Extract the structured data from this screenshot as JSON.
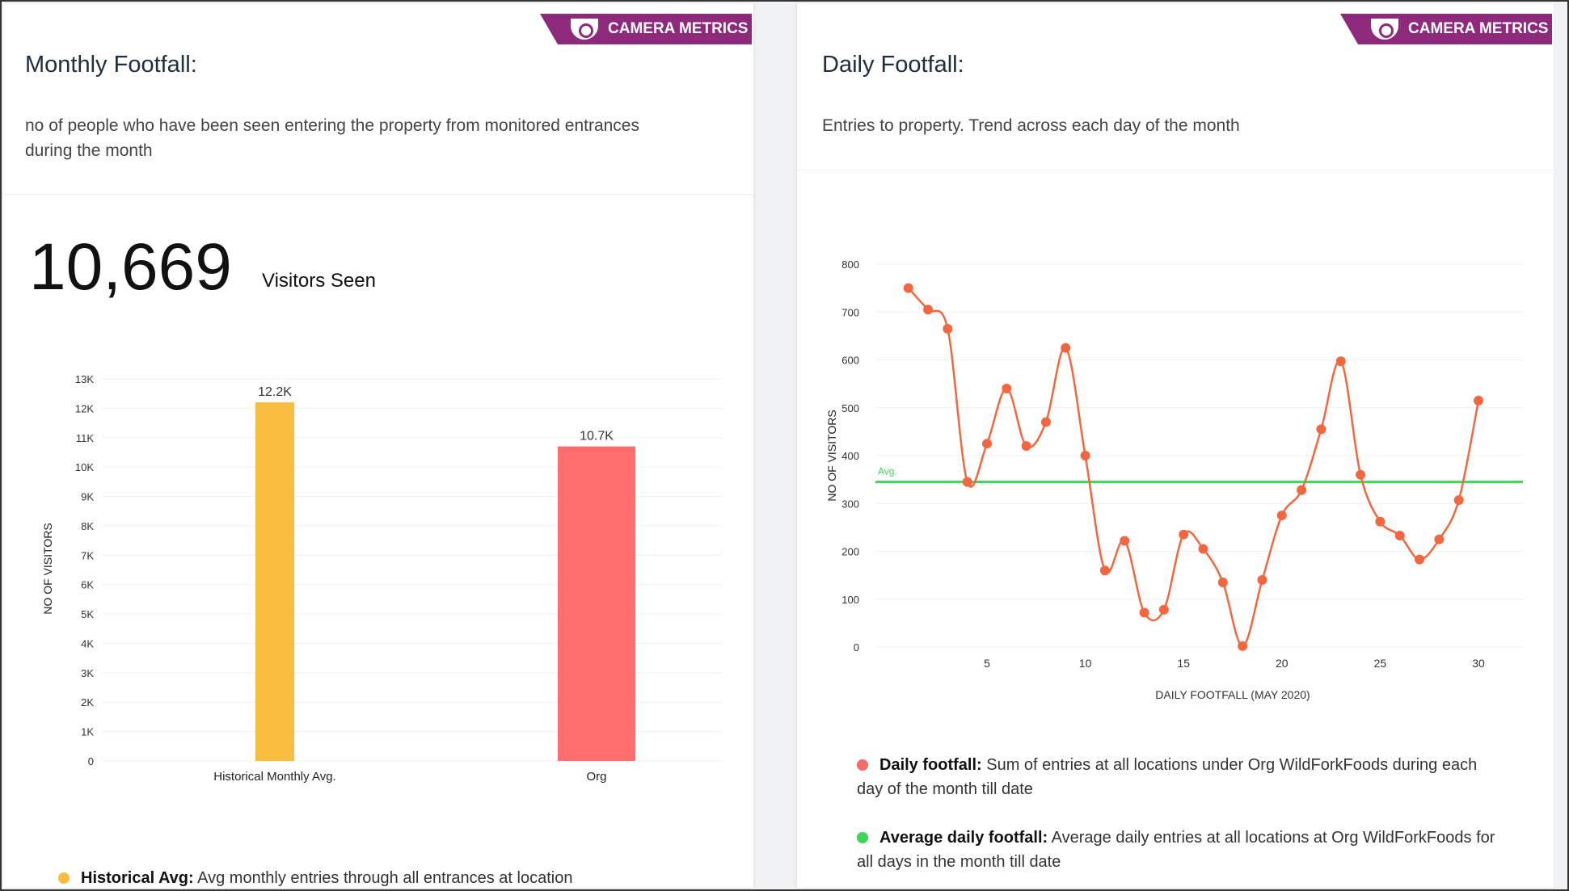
{
  "left": {
    "badge": "CAMERA METRICS",
    "title": "Monthly Footfall:",
    "description": "no of people who have been seen entering the property from monitored entrances during the month",
    "big_number": "10,669",
    "big_label": "Visitors Seen",
    "legend": [
      {
        "bold": "Historical Avg:",
        "text": "Avg monthly entries through all entrances at location",
        "color": "#fbbd3f"
      }
    ]
  },
  "right": {
    "badge": "CAMERA METRICS",
    "title": "Daily Footfall:",
    "description": "Entries to property. Trend across each day of the month",
    "legend": [
      {
        "bold": "Daily footfall:",
        "text": "Sum of entries at all locations under Org WildForkFoods during each day of the month till date",
        "color": "#f46a6a"
      },
      {
        "bold": "Average daily footfall:",
        "text": "Average daily entries at all locations at Org WildForkFoods for all days in the month till date",
        "color": "#3fd45a"
      }
    ]
  },
  "chart_data": [
    {
      "type": "bar",
      "categories": [
        "Historical Monthly Avg.",
        "Org"
      ],
      "values": [
        12200,
        10700
      ],
      "data_labels": [
        "12.2K",
        "10.7K"
      ],
      "colors": [
        "#fbbd3f",
        "#fe6e6e"
      ],
      "ylabel": "NO OF VISITORS",
      "ylim": [
        0,
        13000
      ],
      "yticks": [
        "0",
        "1K",
        "2K",
        "3K",
        "4K",
        "5K",
        "6K",
        "7K",
        "8K",
        "9K",
        "10K",
        "11K",
        "12K",
        "13K"
      ]
    },
    {
      "type": "line",
      "title": "",
      "xlabel": "DAILY FOOTFALL (MAY 2020)",
      "ylabel": "NO OF VISITORS",
      "ylim": [
        0,
        800
      ],
      "yticks": [
        "0",
        "100",
        "200",
        "300",
        "400",
        "500",
        "600",
        "700",
        "800"
      ],
      "xticks": [
        "5",
        "10",
        "15",
        "20",
        "25",
        "30"
      ],
      "x": [
        1,
        2,
        3,
        4,
        5,
        6,
        7,
        8,
        9,
        10,
        11,
        12,
        13,
        14,
        15,
        16,
        17,
        18,
        19,
        20,
        21,
        22,
        23,
        24,
        25,
        26,
        27,
        28,
        29,
        30
      ],
      "values": [
        750,
        705,
        665,
        345,
        425,
        540,
        420,
        470,
        625,
        400,
        160,
        222,
        72,
        78,
        235,
        205,
        135,
        2,
        140,
        275,
        328,
        455,
        597,
        360,
        262,
        233,
        183,
        225,
        307,
        515
      ],
      "line_color": "#f2673f",
      "avg": {
        "label": "Avg.",
        "value": 345,
        "color": "#3fd45a"
      }
    }
  ]
}
